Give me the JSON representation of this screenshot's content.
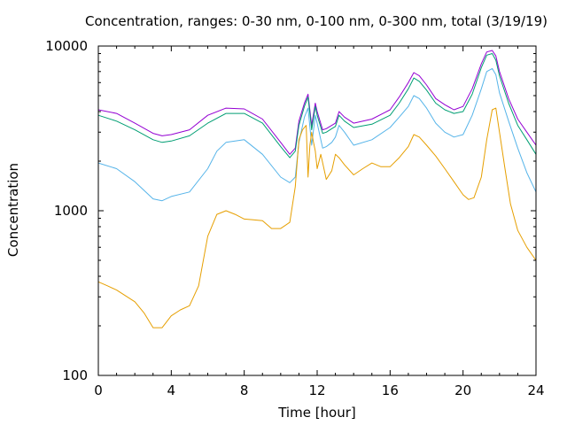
{
  "chart_data": {
    "type": "line",
    "title": "Concentration, ranges: 0-30 nm, 0-100 nm, 0-300 nm, total (3/19/19)",
    "xlabel": "Time [hour]",
    "ylabel": "Concentration",
    "xlim": [
      0,
      24
    ],
    "ylim": [
      100,
      10000
    ],
    "yscale": "log",
    "x_ticks": [
      0,
      4,
      8,
      12,
      16,
      20,
      24
    ],
    "x_tick_labels": [
      "0",
      "4",
      "8",
      "12",
      "16",
      "20",
      "24"
    ],
    "y_ticks": [
      100,
      1000,
      10000
    ],
    "y_tick_labels": [
      "100",
      "1000",
      "10000"
    ],
    "grid": false,
    "legend": "none",
    "series": [
      {
        "color": "#9400d3",
        "x": [
          0,
          1,
          2,
          3,
          3.5,
          4,
          5,
          6,
          7,
          8,
          9,
          10,
          10.5,
          10.8,
          11,
          11.3,
          11.5,
          11.7,
          11.9,
          12,
          12.3,
          12.5,
          12.8,
          13,
          13.2,
          13.5,
          14,
          15,
          16,
          16.5,
          17,
          17.3,
          17.6,
          18,
          18.5,
          19,
          19.5,
          20,
          20.5,
          21,
          21.3,
          21.6,
          21.8,
          22,
          22.5,
          23,
          23.5,
          24
        ],
        "values": [
          4100,
          3900,
          3400,
          2950,
          2850,
          2900,
          3100,
          3800,
          4200,
          4150,
          3600,
          2600,
          2200,
          2400,
          3500,
          4500,
          5100,
          3300,
          4500,
          4000,
          3100,
          3150,
          3300,
          3400,
          4000,
          3700,
          3400,
          3600,
          4100,
          4900,
          6000,
          6900,
          6600,
          5800,
          4800,
          4400,
          4100,
          4300,
          5500,
          7800,
          9200,
          9400,
          8700,
          7000,
          4800,
          3600,
          3000,
          2500
        ]
      },
      {
        "color": "#009e73",
        "x": [
          0,
          1,
          2,
          3,
          3.5,
          4,
          5,
          6,
          7,
          8,
          9,
          10,
          10.5,
          10.8,
          11,
          11.3,
          11.5,
          11.7,
          11.9,
          12,
          12.3,
          12.5,
          12.8,
          13,
          13.2,
          13.5,
          14,
          15,
          16,
          16.5,
          17,
          17.3,
          17.6,
          18,
          18.5,
          19,
          19.5,
          20,
          20.5,
          21,
          21.3,
          21.6,
          21.8,
          22,
          22.5,
          23,
          23.5,
          24
        ],
        "values": [
          3800,
          3500,
          3100,
          2700,
          2600,
          2650,
          2850,
          3400,
          3900,
          3900,
          3400,
          2450,
          2100,
          2300,
          3300,
          4300,
          4900,
          3100,
          4300,
          3800,
          2950,
          3000,
          3150,
          3250,
          3800,
          3500,
          3200,
          3350,
          3800,
          4500,
          5500,
          6400,
          6100,
          5400,
          4500,
          4100,
          3900,
          4000,
          5100,
          7400,
          8800,
          9000,
          8200,
          6600,
          4500,
          3300,
          2700,
          2200
        ]
      },
      {
        "color": "#56b4e9",
        "x": [
          0,
          1,
          2,
          3,
          3.5,
          4,
          5,
          6,
          6.5,
          7,
          8,
          9,
          10,
          10.5,
          10.8,
          11,
          11.3,
          11.5,
          11.7,
          11.9,
          12,
          12.3,
          12.5,
          12.8,
          13,
          13.2,
          13.5,
          14,
          15,
          16,
          16.5,
          17,
          17.3,
          17.6,
          18,
          18.5,
          19,
          19.5,
          20,
          20.5,
          21,
          21.3,
          21.6,
          21.8,
          22,
          22.5,
          23,
          23.5,
          24
        ],
        "values": [
          1950,
          1800,
          1500,
          1180,
          1150,
          1220,
          1300,
          1800,
          2300,
          2600,
          2700,
          2200,
          1600,
          1480,
          1600,
          2600,
          3700,
          4200,
          2500,
          3800,
          3400,
          2400,
          2450,
          2600,
          2800,
          3300,
          3000,
          2500,
          2700,
          3200,
          3700,
          4300,
          5000,
          4800,
          4200,
          3400,
          3000,
          2800,
          2900,
          3800,
          5500,
          7000,
          7300,
          6700,
          5200,
          3500,
          2400,
          1700,
          1300
        ]
      },
      {
        "color": "#e69f00",
        "x": [
          0,
          0.5,
          1,
          2,
          2.5,
          3,
          3.5,
          4,
          4.5,
          5,
          5.5,
          6,
          6.5,
          7,
          7.5,
          8,
          8.5,
          9,
          9.5,
          10,
          10.5,
          10.8,
          11,
          11.2,
          11.4,
          11.5,
          11.6,
          11.7,
          11.8,
          11.9,
          12,
          12.2,
          12.5,
          12.8,
          13,
          13.2,
          13.5,
          14,
          14.5,
          15,
          15.5,
          16,
          16.5,
          17,
          17.3,
          17.6,
          18,
          18.5,
          19,
          19.5,
          20,
          20.3,
          20.6,
          21,
          21.3,
          21.6,
          21.8,
          22,
          22.3,
          22.6,
          23,
          23.5,
          24
        ],
        "values": [
          370,
          350,
          330,
          280,
          240,
          195,
          195,
          230,
          250,
          265,
          350,
          700,
          950,
          1000,
          950,
          890,
          880,
          870,
          780,
          780,
          850,
          1400,
          2700,
          3100,
          3300,
          1600,
          2500,
          3000,
          2600,
          2300,
          1800,
          2200,
          1550,
          1750,
          2200,
          2100,
          1900,
          1650,
          1800,
          1950,
          1850,
          1850,
          2100,
          2450,
          2900,
          2800,
          2500,
          2150,
          1800,
          1500,
          1250,
          1170,
          1200,
          1600,
          2700,
          4100,
          4200,
          3000,
          1800,
          1100,
          760,
          600,
          500
        ]
      }
    ]
  }
}
